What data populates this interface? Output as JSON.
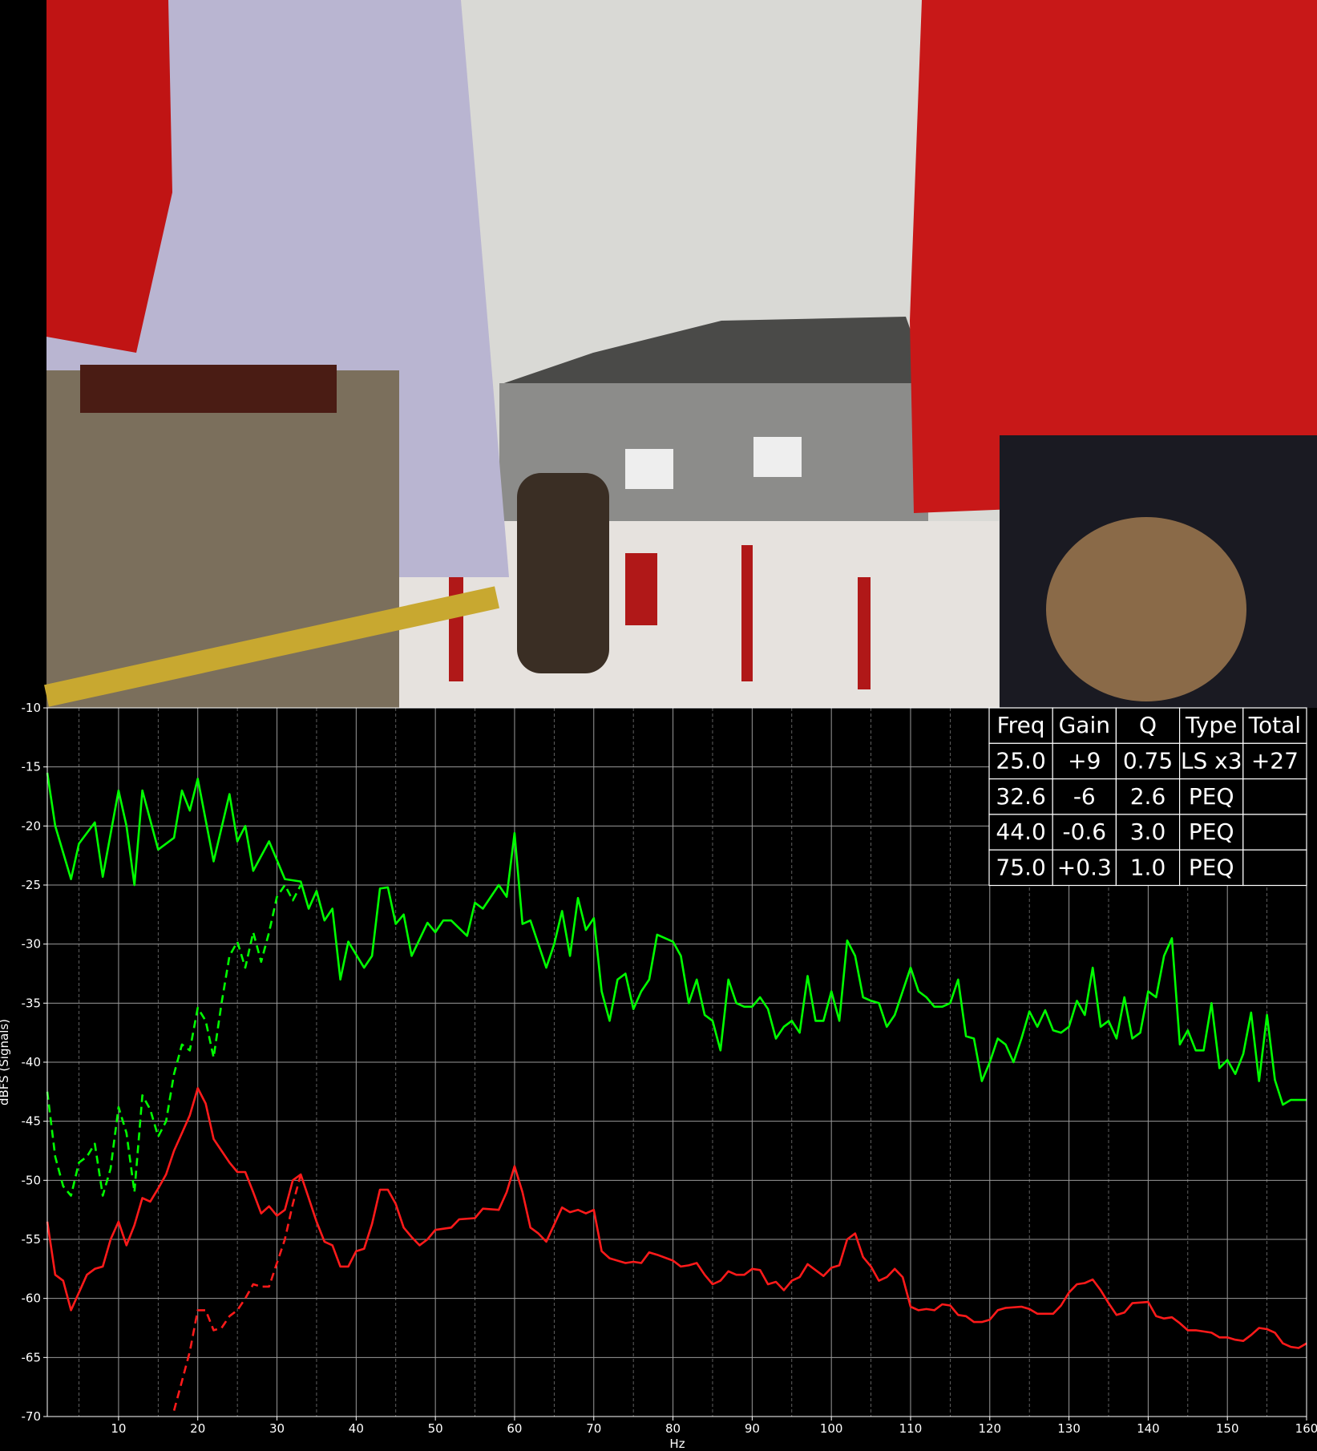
{
  "chart_data": {
    "type": "line",
    "xlabel": "Hz",
    "ylabel": "dBFS (Signals)",
    "xlim": [
      1,
      160
    ],
    "ylim": [
      -70,
      -10
    ],
    "xticks": [
      10,
      20,
      30,
      40,
      50,
      60,
      70,
      80,
      90,
      100,
      110,
      120,
      130,
      140,
      150,
      160
    ],
    "xminorticks": [
      5,
      15,
      25,
      35,
      45,
      55,
      65,
      75,
      85,
      95,
      105,
      115,
      125,
      135,
      145,
      155
    ],
    "yticks": [
      -70,
      -65,
      -60,
      -55,
      -50,
      -45,
      -40,
      -35,
      -30,
      -25,
      -20,
      -15,
      -10
    ],
    "grid": true,
    "series": [
      {
        "color": "#00ff00",
        "linestyle": "solid",
        "x": [
          1,
          2,
          4,
          5,
          7,
          8,
          10,
          11,
          12,
          13,
          15,
          17,
          18,
          19,
          20,
          22,
          24,
          25,
          26,
          27,
          29,
          31,
          33,
          34,
          35,
          36,
          37,
          38,
          39,
          41,
          42,
          43,
          44,
          45,
          46,
          47,
          49,
          50,
          51,
          52,
          54,
          55,
          56,
          58,
          59,
          60,
          61,
          62,
          64,
          65,
          66,
          67,
          68,
          69,
          70,
          71,
          72,
          73,
          74,
          75,
          76,
          77,
          78,
          80,
          81,
          82,
          83,
          84,
          85,
          86,
          87,
          88,
          89,
          90,
          91,
          92,
          93,
          94,
          95,
          96,
          97,
          98,
          99,
          100,
          101,
          102,
          103,
          104,
          105,
          106,
          107,
          108,
          110,
          111,
          112,
          113,
          114,
          115,
          116,
          117,
          118,
          119,
          120,
          121,
          122,
          123,
          124,
          125,
          126,
          127,
          128,
          129,
          130,
          131,
          132,
          133,
          134,
          135,
          136,
          137,
          138,
          139,
          140,
          141,
          142,
          143,
          144,
          145,
          146,
          147,
          148,
          149,
          150,
          151,
          152,
          153,
          154,
          155,
          156,
          157,
          158,
          160
        ],
        "values": [
          -15.5,
          -20,
          -24.5,
          -21.5,
          -19.7,
          -24.3,
          -17,
          -20,
          -25,
          -17,
          -22,
          -21,
          -17,
          -18.7,
          -16,
          -23,
          -17.3,
          -21.3,
          -20,
          -23.8,
          -21.3,
          -24.5,
          -24.7,
          -27,
          -25.5,
          -28,
          -27,
          -33,
          -29.8,
          -32,
          -31,
          -25.3,
          -25.2,
          -28.3,
          -27.5,
          -31,
          -28.2,
          -29,
          -28,
          -28,
          -29.3,
          -26.5,
          -27,
          -25,
          -26,
          -20.6,
          -28.3,
          -28,
          -32,
          -30,
          -27.2,
          -31,
          -26.1,
          -28.8,
          -27.8,
          -34,
          -36.5,
          -33,
          -32.5,
          -35.5,
          -34,
          -33,
          -29.2,
          -29.8,
          -31,
          -35,
          -33,
          -36,
          -36.5,
          -39,
          -33,
          -35,
          -35.3,
          -35.3,
          -34.5,
          -35.5,
          -38,
          -37,
          -36.5,
          -37.5,
          -32.7,
          -36.5,
          -36.5,
          -34,
          -36.5,
          -29.7,
          -31,
          -34.5,
          -34.8,
          -35,
          -37,
          -36,
          -32,
          -34,
          -34.5,
          -35.3,
          -35.3,
          -35,
          -33,
          -37.8,
          -38,
          -41.6,
          -40,
          -38,
          -38.5,
          -40,
          -38,
          -35.7,
          -37,
          -35.6,
          -37.3,
          -37.5,
          -37,
          -34.8,
          -36,
          -32,
          -37,
          -36.5,
          -38,
          -34.5,
          -38,
          -37.5,
          -34,
          -34.5,
          -31,
          -29.5,
          -38.5,
          -37.3,
          -39,
          -39,
          -35,
          -40.5,
          -39.8,
          -41,
          -39.3,
          -35.8,
          -41.6,
          -36,
          -41.5,
          -43.6,
          -43.2,
          -43.2
        ]
      },
      {
        "color": "#00ff00",
        "linestyle": "dashed",
        "x": [
          1,
          2,
          3,
          4,
          5,
          6,
          7,
          8,
          9,
          10,
          11,
          12,
          13,
          14,
          15,
          16,
          17,
          18,
          19,
          20,
          21,
          22,
          23,
          24,
          25,
          26,
          27,
          28,
          29,
          30,
          31,
          32,
          33
        ],
        "values": [
          -42.5,
          -48,
          -50.5,
          -51.3,
          -48.5,
          -48,
          -46.9,
          -51.3,
          -49,
          -43.8,
          -46,
          -51,
          -42.8,
          -44,
          -46.3,
          -45,
          -41,
          -38.5,
          -39,
          -35.4,
          -36.5,
          -39.6,
          -35,
          -31,
          -29.8,
          -32,
          -29,
          -31.5,
          -29,
          -26,
          -25,
          -26.3,
          -25
        ]
      },
      {
        "color": "#ff1a1a",
        "linestyle": "solid",
        "x": [
          1,
          2,
          3,
          4,
          5,
          6,
          7,
          8,
          9,
          10,
          11,
          12,
          13,
          14,
          15,
          16,
          17,
          18,
          19,
          20,
          21,
          22,
          23,
          24,
          25,
          26,
          27,
          28,
          29,
          30,
          31,
          32,
          33,
          34,
          35,
          36,
          37,
          38,
          39,
          40,
          41,
          42,
          43,
          44,
          45,
          46,
          47,
          48,
          49,
          50,
          52,
          53,
          55,
          56,
          58,
          59,
          60,
          61,
          62,
          63,
          64,
          66,
          67,
          68,
          69,
          70,
          71,
          72,
          74,
          75,
          76,
          77,
          78,
          80,
          81,
          82,
          83,
          84,
          85,
          86,
          87,
          88,
          89,
          90,
          91,
          92,
          93,
          94,
          95,
          96,
          97,
          98,
          99,
          100,
          101,
          102,
          103,
          104,
          105,
          106,
          107,
          108,
          109,
          110,
          111,
          112,
          113,
          114,
          115,
          116,
          117,
          118,
          119,
          120,
          121,
          122,
          124,
          125,
          126,
          128,
          129,
          130,
          131,
          132,
          133,
          134,
          135,
          136,
          137,
          138,
          140,
          141,
          142,
          143,
          144,
          145,
          146,
          148,
          149,
          150,
          151,
          152,
          153,
          154,
          155,
          156,
          157,
          158,
          159,
          160
        ],
        "values": [
          -53.5,
          -58,
          -58.5,
          -61,
          -59.5,
          -58,
          -57.5,
          -57.3,
          -55,
          -53.5,
          -55.5,
          -53.8,
          -51.5,
          -51.8,
          -50.7,
          -49.5,
          -47.5,
          -46,
          -44.5,
          -42.2,
          -43.5,
          -46.5,
          -47.5,
          -48.5,
          -49.3,
          -49.3,
          -51,
          -52.8,
          -52.2,
          -53,
          -52.5,
          -50,
          -49.5,
          -51.5,
          -53.5,
          -55.2,
          -55.5,
          -57.3,
          -57.3,
          -56,
          -55.8,
          -53.7,
          -50.8,
          -50.8,
          -52,
          -54,
          -54.8,
          -55.5,
          -55,
          -54.2,
          -54,
          -53.3,
          -53.2,
          -52.4,
          -52.5,
          -51,
          -48.8,
          -51,
          -54,
          -54.5,
          -55.2,
          -52.3,
          -52.7,
          -52.5,
          -52.8,
          -52.5,
          -56,
          -56.6,
          -57,
          -56.9,
          -57,
          -56.1,
          -56.3,
          -56.8,
          -57.3,
          -57.2,
          -57,
          -58,
          -58.8,
          -58.5,
          -57.7,
          -58,
          -58,
          -57.5,
          -57.6,
          -58.8,
          -58.6,
          -59.3,
          -58.5,
          -58.2,
          -57.1,
          -57.6,
          -58.1,
          -57.4,
          -57.2,
          -55,
          -54.5,
          -56.5,
          -57.3,
          -58.5,
          -58.2,
          -57.5,
          -58.2,
          -60.7,
          -61,
          -60.9,
          -61,
          -60.5,
          -60.6,
          -61.4,
          -61.5,
          -62,
          -62,
          -61.8,
          -61,
          -60.8,
          -60.7,
          -60.9,
          -61.3,
          -61.3,
          -60.6,
          -59.5,
          -58.8,
          -58.7,
          -58.4,
          -59.3,
          -60.4,
          -61.4,
          -61.2,
          -60.4,
          -60.3,
          -61.5,
          -61.7,
          -61.6,
          -62.1,
          -62.7,
          -62.7,
          -62.9,
          -63.3,
          -63.3,
          -63.5,
          -63.6,
          -63.1,
          -62.5,
          -62.6,
          -62.9,
          -63.8,
          -64.1,
          -64.2,
          -63.8
        ]
      },
      {
        "color": "#ff1a1a",
        "linestyle": "dashed",
        "x": [
          17,
          18,
          19,
          20,
          21,
          22,
          23,
          24,
          25,
          26,
          27,
          28,
          29,
          30,
          31,
          32,
          33
        ],
        "values": [
          -69.5,
          -67,
          -64.5,
          -61,
          -61,
          -62.7,
          -62.5,
          -61.5,
          -61,
          -60,
          -58.8,
          -59,
          -59,
          -57,
          -55,
          -52,
          -49.5
        ]
      }
    ],
    "table": {
      "columns": [
        "Freq",
        "Gain",
        "Q",
        "Type",
        "Total"
      ],
      "rows": [
        [
          "25.0",
          "+9",
          "0.75",
          "LS x3",
          "+27"
        ],
        [
          "32.6",
          "-6",
          "2.6",
          "PEQ"
        ],
        [
          "44.0",
          "-0.6",
          "3.0",
          "PEQ"
        ],
        [
          "75.0",
          "+0.3",
          "1.0",
          "PEQ"
        ]
      ]
    }
  }
}
